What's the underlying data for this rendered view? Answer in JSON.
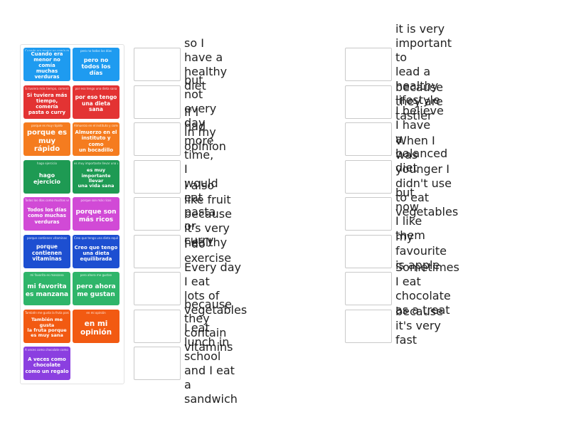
{
  "tiles": [
    {
      "small": "Cuando era menor no comía muchas verduras",
      "text": "Cuando era\nmenor no comía\nmuchas verduras",
      "color": "#1e9bf0",
      "fs": 7
    },
    {
      "small": "pero no todos los días",
      "text": "pero no\ntodos los días",
      "color": "#1e9bf0",
      "fs": 8
    },
    {
      "small": "Si tuviera más tiempo, comería pasta o curry",
      "text": "Si tuviera más\ntiempo, comería\npasta o curry",
      "color": "#e33333",
      "fs": 7
    },
    {
      "small": "por eso tengo una dieta sana",
      "text": "por eso tengo\nuna dieta sana",
      "color": "#e33333",
      "fs": 7.5
    },
    {
      "small": "porque es muy rápido",
      "text": "porque es\nmuy rápido",
      "color": "#f57c1f",
      "fs": 10
    },
    {
      "small": "Almuerzo en el instituto y como un bocadillo",
      "text": "Almuerzo en el\ninstituto y como\nun bocadillo",
      "color": "#f57c1f",
      "fs": 7
    },
    {
      "small": "hago ejercicio",
      "text": "hago ejercicio",
      "color": "#1e9a53",
      "fs": 8,
      "top": "hago ejercicio"
    },
    {
      "small": "es muy importante llevar una vida sana",
      "text": "es muy\nimportante llevar\nuna vida sana",
      "color": "#1e9a53",
      "fs": 6.5
    },
    {
      "small": "Todos los días como muchas verduras",
      "text": "Todos los días\ncomo muchas\nverduras",
      "color": "#d14ad6",
      "fs": 7
    },
    {
      "small": "porque son más ricos",
      "text": "porque son\nmás ricos",
      "color": "#d14ad6",
      "fs": 9
    },
    {
      "small": "porque contienen vitaminas",
      "text": "porque\ncontienen\nvitaminas",
      "color": "#1d4fd1",
      "fs": 7.5
    },
    {
      "small": "Creo que tengo una dieta equilibrada",
      "text": "Creo que tengo\nuna dieta\nequilibrada",
      "color": "#1d4fd1",
      "fs": 7
    },
    {
      "small": "mi favorita es manzana",
      "text": "mi favorita\nes manzana",
      "color": "#2fb56a",
      "fs": 9
    },
    {
      "small": "pero ahora me gustan",
      "text": "pero ahora\nme gustan",
      "color": "#2fb56a",
      "fs": 9
    },
    {
      "small": "También me gusta la fruta porque es muy sana",
      "text": "También me gusta\nla fruta porque\nes muy sana",
      "color": "#f25a12",
      "fs": 6.5
    },
    {
      "small": "en mi opinión",
      "text": "en mi\nopinión",
      "color": "#f25a12",
      "fs": 10.5
    },
    {
      "small": "A veces como chocolate como un regalo",
      "text": "A veces como\nchocolate\ncomo un regalo",
      "color": "#8b3fe0",
      "fs": 7
    }
  ],
  "left_targets": [
    "so I have a healthy diet",
    "but not every day",
    "in my opinion",
    "If I had more time, I\nwould eat pasta or curry",
    "I also like fruit because\nit's very healthy",
    "I do exercise",
    "Every day I eat\nlots of vegetables",
    "because they\ncontain vitamins",
    "I eat lunch in school\nand I eat a sandwich"
  ],
  "right_targets": [
    "it is very important to\nlead a healthy lifestyle",
    "because they are tastier",
    "I believe I have\na balanced diet",
    "When I was younger I\ndidn't use to eat vegetables",
    "but now I like them",
    "my favourite is apple",
    "Sometimes I eat\nchocolate as a treat",
    "because it's very fast"
  ]
}
